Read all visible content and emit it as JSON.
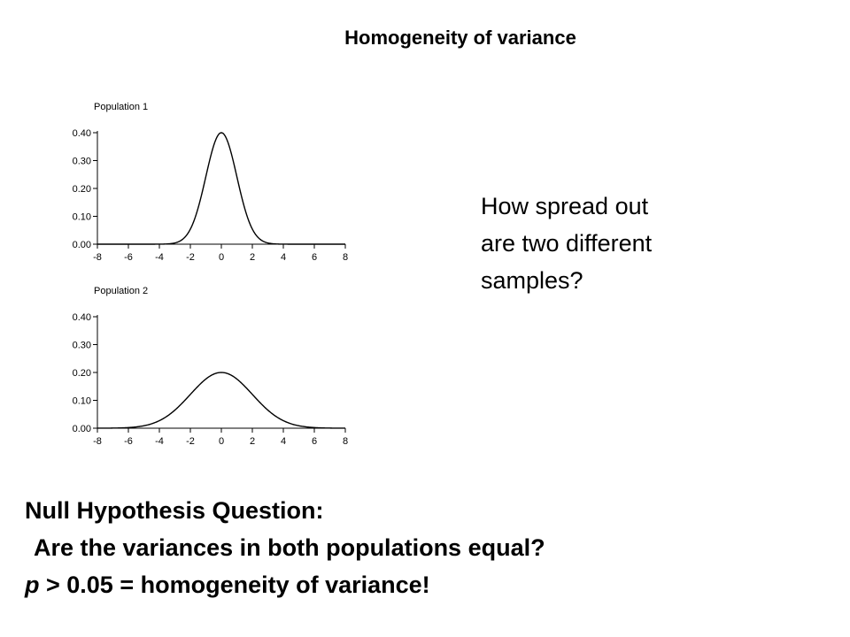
{
  "slide": {
    "title": "Homogeneity of variance",
    "question_lines": [
      "How spread out",
      "are two different",
      "samples?"
    ],
    "null_heading": "Null Hypothesis Question:",
    "null_question": " Are the variances in both populations equal?",
    "conclusion_p": "p",
    "conclusion_rest": " > 0.05 = homogeneity of variance!"
  },
  "chart_data": [
    {
      "type": "line",
      "title": "Population 1",
      "distribution": "normal",
      "mean": 0,
      "sd": 1,
      "peak": 0.4,
      "xlim": [
        -8,
        8
      ],
      "ylim": [
        0,
        0.4
      ],
      "xticks": [
        "-8",
        "-6",
        "-4",
        "-2",
        "0",
        "2",
        "4",
        "6",
        "8"
      ],
      "yticks": [
        "0.00",
        "0.10",
        "0.20",
        "0.30",
        "0.40"
      ],
      "line_color": "#000000"
    },
    {
      "type": "line",
      "title": "Population 2",
      "distribution": "normal",
      "mean": 0,
      "sd": 2,
      "peak": 0.2,
      "xlim": [
        -8,
        8
      ],
      "ylim": [
        0,
        0.4
      ],
      "xticks": [
        "-8",
        "-6",
        "-4",
        "-2",
        "0",
        "2",
        "4",
        "6",
        "8"
      ],
      "yticks": [
        "0.00",
        "0.10",
        "0.20",
        "0.30",
        "0.40"
      ],
      "line_color": "#000000"
    }
  ]
}
